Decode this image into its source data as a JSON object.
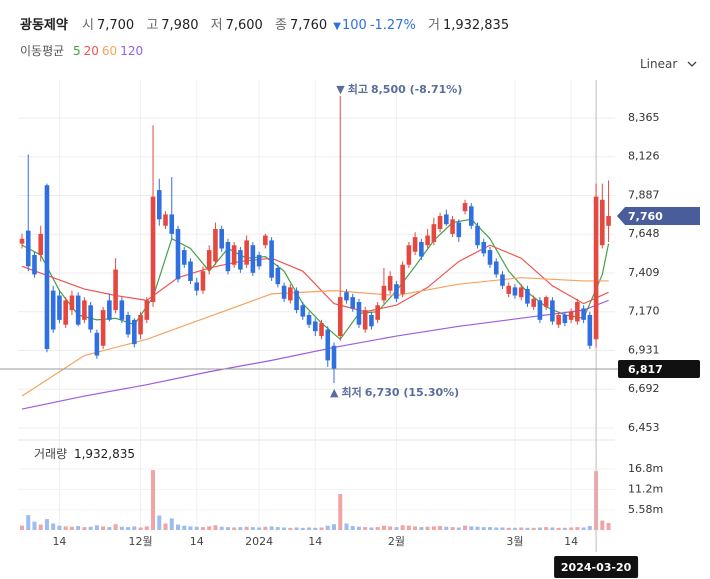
{
  "chart_data": {
    "type": "candlestick",
    "header": {
      "name": "광동제약",
      "fields": [
        {
          "label": "시",
          "value": "7,700"
        },
        {
          "label": "고",
          "value": "7,980"
        },
        {
          "label": "저",
          "value": "7,600"
        },
        {
          "label": "종",
          "value": "7,760"
        }
      ],
      "change": "100",
      "change_pct": "-1.27%",
      "volume": {
        "label": "거",
        "value": "1,932,835"
      }
    },
    "scale_label": "Linear",
    "up_color": "#e5483f",
    "down_color": "#2f6fe0",
    "categories": [
      null,
      null,
      null,
      null,
      null,
      null,
      "14",
      null,
      null,
      null,
      null,
      null,
      null,
      null,
      null,
      null,
      null,
      null,
      null,
      "12월",
      null,
      null,
      null,
      null,
      null,
      null,
      null,
      null,
      "14",
      null,
      null,
      null,
      null,
      null,
      null,
      null,
      null,
      null,
      "2024",
      null,
      null,
      null,
      null,
      null,
      null,
      null,
      null,
      "14",
      null,
      null,
      null,
      null,
      null,
      null,
      null,
      null,
      null,
      null,
      null,
      null,
      "2월",
      null,
      null,
      null,
      null,
      null,
      null,
      null,
      null,
      null,
      null,
      null,
      null,
      null,
      null,
      null,
      null,
      null,
      null,
      "3월",
      null,
      null,
      null,
      null,
      null,
      null,
      null,
      null,
      "14",
      null,
      null,
      null,
      null,
      null,
      null
    ],
    "open": [
      7590,
      7670,
      7520,
      7520,
      7950,
      7300,
      7270,
      7090,
      7180,
      7270,
      7120,
      7210,
      7040,
      6960,
      7240,
      7180,
      7240,
      7150,
      7120,
      7030,
      7120,
      7230,
      7920,
      7700,
      7770,
      7680,
      7550,
      7480,
      7350,
      7300,
      7430,
      7480,
      7680,
      7600,
      7460,
      7550,
      7460,
      7580,
      7520,
      7580,
      7610,
      7440,
      7330,
      7240,
      7300,
      7210,
      7150,
      7110,
      7020,
      7060,
      6960,
      7020,
      7290,
      7260,
      7230,
      7060,
      7150,
      7120,
      7240,
      7300,
      7340,
      7280,
      7460,
      7540,
      7600,
      7580,
      7600,
      7680,
      7770,
      7650,
      7720,
      7790,
      7820,
      7700,
      7600,
      7550,
      7480,
      7400,
      7280,
      7320,
      7260,
      7310,
      7200,
      7240,
      7200,
      7240,
      7090,
      7150,
      7120,
      7110,
      7190,
      7150,
      7000,
      7580,
      7700
    ],
    "high": [
      7650,
      8140,
      7540,
      7700,
      7960,
      7330,
      7300,
      7260,
      7300,
      7290,
      7260,
      7230,
      7060,
      7200,
      7280,
      7500,
      7260,
      7170,
      7130,
      7170,
      7260,
      8320,
      7990,
      7790,
      8000,
      7700,
      7570,
      7500,
      7380,
      7450,
      7580,
      7720,
      7700,
      7620,
      7600,
      7570,
      7640,
      7600,
      7540,
      7650,
      7630,
      7460,
      7350,
      7340,
      7320,
      7230,
      7170,
      7130,
      7120,
      7080,
      6980,
      8500,
      7310,
      7280,
      7250,
      7200,
      7170,
      7230,
      7440,
      7420,
      7360,
      7480,
      7600,
      7660,
      7620,
      7680,
      7750,
      7780,
      7800,
      7760,
      7740,
      7860,
      7840,
      7720,
      7620,
      7570,
      7500,
      7420,
      7350,
      7340,
      7340,
      7330,
      7270,
      7260,
      7270,
      7260,
      7170,
      7170,
      7190,
      7250,
      7210,
      7170,
      7960,
      7960,
      7980
    ],
    "low": [
      7560,
      7420,
      7380,
      7480,
      6920,
      7040,
      7100,
      7070,
      7150,
      7080,
      7100,
      7040,
      6880,
      6940,
      7110,
      7160,
      7100,
      7010,
      6950,
      7000,
      7100,
      7200,
      7700,
      7680,
      7620,
      7350,
      7440,
      7340,
      7270,
      7280,
      7400,
      7460,
      7540,
      7400,
      7440,
      7410,
      7440,
      7390,
      7430,
      7560,
      7360,
      7320,
      7230,
      7220,
      7160,
      7120,
      7070,
      7020,
      7000,
      6830,
      6730,
      6990,
      7220,
      7170,
      7070,
      7040,
      7060,
      7100,
      7220,
      7280,
      7230,
      7260,
      7440,
      7520,
      7490,
      7560,
      7580,
      7660,
      7700,
      7630,
      7600,
      7770,
      7680,
      7560,
      7510,
      7440,
      7380,
      7310,
      7260,
      7250,
      7240,
      7200,
      7180,
      7100,
      7180,
      7090,
      7070,
      7080,
      7100,
      7090,
      7100,
      6940,
      6950,
      7560,
      7600
    ],
    "close": [
      7620,
      7450,
      7400,
      7650,
      6940,
      7060,
      7120,
      7240,
      7270,
      7090,
      7240,
      7060,
      6900,
      7180,
      7120,
      7430,
      7120,
      7030,
      6970,
      7150,
      7240,
      7880,
      7740,
      7770,
      7650,
      7370,
      7460,
      7360,
      7300,
      7420,
      7550,
      7680,
      7560,
      7420,
      7580,
      7430,
      7610,
      7410,
      7450,
      7640,
      7380,
      7340,
      7250,
      7320,
      7180,
      7140,
      7090,
      7050,
      7100,
      6870,
      6820,
      7260,
      7240,
      7190,
      7090,
      7180,
      7080,
      7210,
      7330,
      7390,
      7250,
      7460,
      7580,
      7630,
      7510,
      7640,
      7710,
      7760,
      7710,
      7740,
      7630,
      7840,
      7700,
      7580,
      7530,
      7460,
      7400,
      7330,
      7330,
      7270,
      7320,
      7220,
      7250,
      7120,
      7260,
      7110,
      7150,
      7100,
      7170,
      7230,
      7120,
      6960,
      7880,
      7860,
      7760
    ],
    "ylim": [
      6379,
      8599
    ],
    "yticks": [
      {
        "value": 6453,
        "label": "6,453"
      },
      {
        "value": 6692,
        "label": "6,692"
      },
      {
        "value": 6931,
        "label": "6,931"
      },
      {
        "value": 7170,
        "label": "7,170"
      },
      {
        "value": 7409,
        "label": "7,409"
      },
      {
        "value": 7648,
        "label": "7,648"
      },
      {
        "value": 7887,
        "label": "7,887"
      },
      {
        "value": 8126,
        "label": "8,126"
      },
      {
        "value": 8365,
        "label": "8,365"
      }
    ],
    "grid": true,
    "ma": {
      "title": "이동평균",
      "series": [
        {
          "name": "5",
          "color": "#43a047",
          "x": [
            0,
            3,
            6,
            9,
            12,
            15,
            18,
            21,
            24,
            27,
            30,
            33,
            36,
            39,
            42,
            45,
            48,
            51,
            54,
            57,
            60,
            63,
            66,
            69,
            72,
            75,
            78,
            81,
            84,
            87,
            90,
            93,
            94
          ],
          "values": [
            7580,
            7520,
            7300,
            7150,
            7120,
            7130,
            7090,
            7260,
            7620,
            7560,
            7420,
            7560,
            7500,
            7510,
            7420,
            7220,
            7100,
            7000,
            7160,
            7170,
            7300,
            7450,
            7610,
            7720,
            7740,
            7620,
            7420,
            7290,
            7200,
            7150,
            7130,
            7400,
            7590
          ]
        },
        {
          "name": "20",
          "color": "#ef5350",
          "x": [
            0,
            5,
            10,
            15,
            20,
            25,
            30,
            35,
            40,
            45,
            50,
            55,
            60,
            65,
            70,
            75,
            80,
            85,
            90,
            94
          ],
          "values": [
            7450,
            7380,
            7310,
            7270,
            7240,
            7380,
            7440,
            7480,
            7500,
            7420,
            7220,
            7170,
            7210,
            7320,
            7480,
            7580,
            7500,
            7330,
            7220,
            7290
          ]
        },
        {
          "name": "60",
          "color": "#f4a460",
          "x": [
            0,
            10,
            20,
            30,
            40,
            50,
            60,
            70,
            80,
            90,
            94
          ],
          "values": [
            6650,
            6900,
            7000,
            7140,
            7280,
            7300,
            7270,
            7340,
            7380,
            7360,
            7360
          ]
        },
        {
          "name": "120",
          "color": "#9c5ce0",
          "x": [
            0,
            10,
            20,
            30,
            40,
            50,
            60,
            70,
            80,
            90,
            94
          ],
          "values": [
            6570,
            6650,
            6720,
            6800,
            6870,
            6950,
            7020,
            7080,
            7130,
            7180,
            7240
          ]
        }
      ]
    },
    "volume": {
      "label": "거래량",
      "value_label": "1,932,835",
      "up_color": "#f2a3a3",
      "down_color": "#9dbdf2",
      "values": [
        1200000,
        4100000,
        2300000,
        1500000,
        3000000,
        1800000,
        1200000,
        1000000,
        900000,
        1100000,
        800000,
        900000,
        1300000,
        1000000,
        800000,
        1600000,
        900000,
        800000,
        1000000,
        700000,
        1000000,
        16500000,
        4000000,
        1800000,
        3200000,
        1500000,
        1200000,
        1000000,
        900000,
        800000,
        1000000,
        1300000,
        900000,
        800000,
        700000,
        800000,
        900000,
        800000,
        700000,
        900000,
        1000000,
        800000,
        700000,
        600000,
        700000,
        600000,
        700000,
        600000,
        700000,
        1200000,
        1600000,
        9900000,
        1800000,
        1100000,
        900000,
        800000,
        700000,
        800000,
        1200000,
        1000000,
        800000,
        1300000,
        1200000,
        1000000,
        800000,
        900000,
        1000000,
        1100000,
        900000,
        800000,
        700000,
        1200000,
        1000000,
        900000,
        800000,
        800000,
        700000,
        700000,
        600000,
        600000,
        700000,
        600000,
        600000,
        700000,
        800000,
        700000,
        600000,
        600000,
        700000,
        800000,
        700000,
        1100000,
        16200000,
        2600000,
        1932835
      ],
      "ylim": [
        0,
        24800000
      ],
      "yticks": [
        {
          "value": 5580000,
          "label": "5.58m"
        },
        {
          "value": 11200000,
          "label": "11.2m"
        },
        {
          "value": 16800000,
          "label": "16.8m"
        }
      ]
    },
    "last_price": {
      "value": 7760,
      "label": "7,760",
      "color": "#4a5d9b"
    },
    "crosshair": {
      "x": 92,
      "x_label": "2024-03-20",
      "y": {
        "value": 6817,
        "label": "6,817"
      }
    },
    "annotations": [
      {
        "marker": "▼",
        "label": "최고",
        "text": "8,500 (-8.71%)",
        "x": 51,
        "y": 8500,
        "position": "above"
      },
      {
        "marker": "▲",
        "label": "최저",
        "text": "6,730 (15.30%)",
        "x": 50,
        "y": 6730,
        "position": "below"
      }
    ]
  }
}
